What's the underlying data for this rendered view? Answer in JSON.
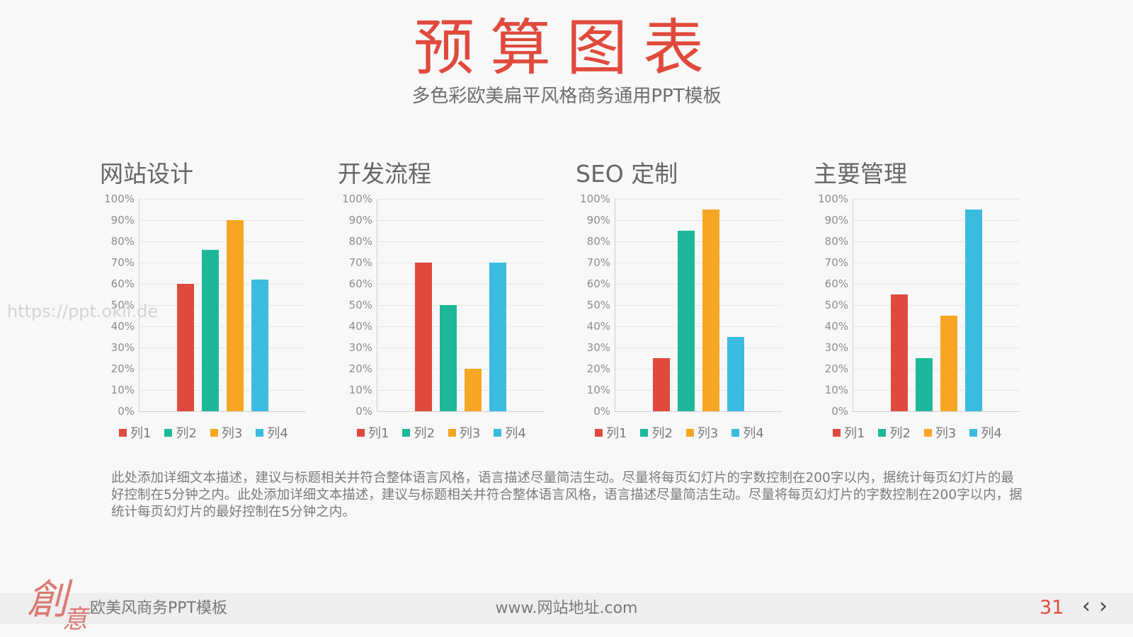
{
  "header": {
    "title": "预算图表",
    "subtitle": "多色彩欧美扁平风格商务通用PPT模板"
  },
  "watermark": "https://ppt.okll.de",
  "description": "此处添加详细文本描述，建议与标题相关并符合整体语言风格，语言描述尽量简洁生动。尽量将每页幻灯片的字数控制在200字以内，据统计每页幻灯片的最好控制在5分钟之内。此处添加详细文本描述，建议与标题相关并符合整体语言风格，语言描述尽量简洁生动。尽量将每页幻灯片的字数控制在200字以内，据统计每页幻灯片的最好控制在5分钟之内。",
  "footer": {
    "brand": [
      "創",
      "意"
    ],
    "left_text": "欧美风商务PPT模板",
    "center_text": "www.网站地址.com",
    "page_number": "31",
    "prev_icon": "‹",
    "next_icon": "›"
  },
  "colors": {
    "series": [
      "#e04a3c",
      "#1db897",
      "#f5a623",
      "#3bbbdf"
    ],
    "title": "#e04a3c"
  },
  "chart_data": [
    {
      "type": "bar",
      "title": "网站设计",
      "series": [
        {
          "name": "列1",
          "values": [
            60
          ]
        },
        {
          "name": "列2",
          "values": [
            76
          ]
        },
        {
          "name": "列3",
          "values": [
            90
          ]
        },
        {
          "name": "列4",
          "values": [
            62
          ]
        }
      ],
      "ylim": [
        0,
        100
      ],
      "yticks": [
        "0%",
        "10%",
        "20%",
        "30%",
        "40%",
        "50%",
        "60%",
        "70%",
        "80%",
        "90%",
        "100%"
      ],
      "grid": true,
      "legend": "bottom"
    },
    {
      "type": "bar",
      "title": "开发流程",
      "series": [
        {
          "name": "列1",
          "values": [
            70
          ]
        },
        {
          "name": "列2",
          "values": [
            50
          ]
        },
        {
          "name": "列3",
          "values": [
            20
          ]
        },
        {
          "name": "列4",
          "values": [
            70
          ]
        }
      ],
      "ylim": [
        0,
        100
      ],
      "yticks": [
        "0%",
        "10%",
        "20%",
        "30%",
        "40%",
        "50%",
        "60%",
        "70%",
        "80%",
        "90%",
        "100%"
      ],
      "grid": true,
      "legend": "bottom"
    },
    {
      "type": "bar",
      "title": "SEO 定制",
      "series": [
        {
          "name": "列1",
          "values": [
            25
          ]
        },
        {
          "name": "列2",
          "values": [
            85
          ]
        },
        {
          "name": "列3",
          "values": [
            95
          ]
        },
        {
          "name": "列4",
          "values": [
            35
          ]
        }
      ],
      "ylim": [
        0,
        100
      ],
      "yticks": [
        "0%",
        "10%",
        "20%",
        "30%",
        "40%",
        "50%",
        "60%",
        "70%",
        "80%",
        "90%",
        "100%"
      ],
      "grid": true,
      "legend": "bottom"
    },
    {
      "type": "bar",
      "title": "主要管理",
      "series": [
        {
          "name": "列1",
          "values": [
            55
          ]
        },
        {
          "name": "列2",
          "values": [
            25
          ]
        },
        {
          "name": "列3",
          "values": [
            45
          ]
        },
        {
          "name": "列4",
          "values": [
            95
          ]
        }
      ],
      "ylim": [
        0,
        100
      ],
      "yticks": [
        "0%",
        "10%",
        "20%",
        "30%",
        "40%",
        "50%",
        "60%",
        "70%",
        "80%",
        "90%",
        "100%"
      ],
      "grid": true,
      "legend": "bottom"
    }
  ]
}
